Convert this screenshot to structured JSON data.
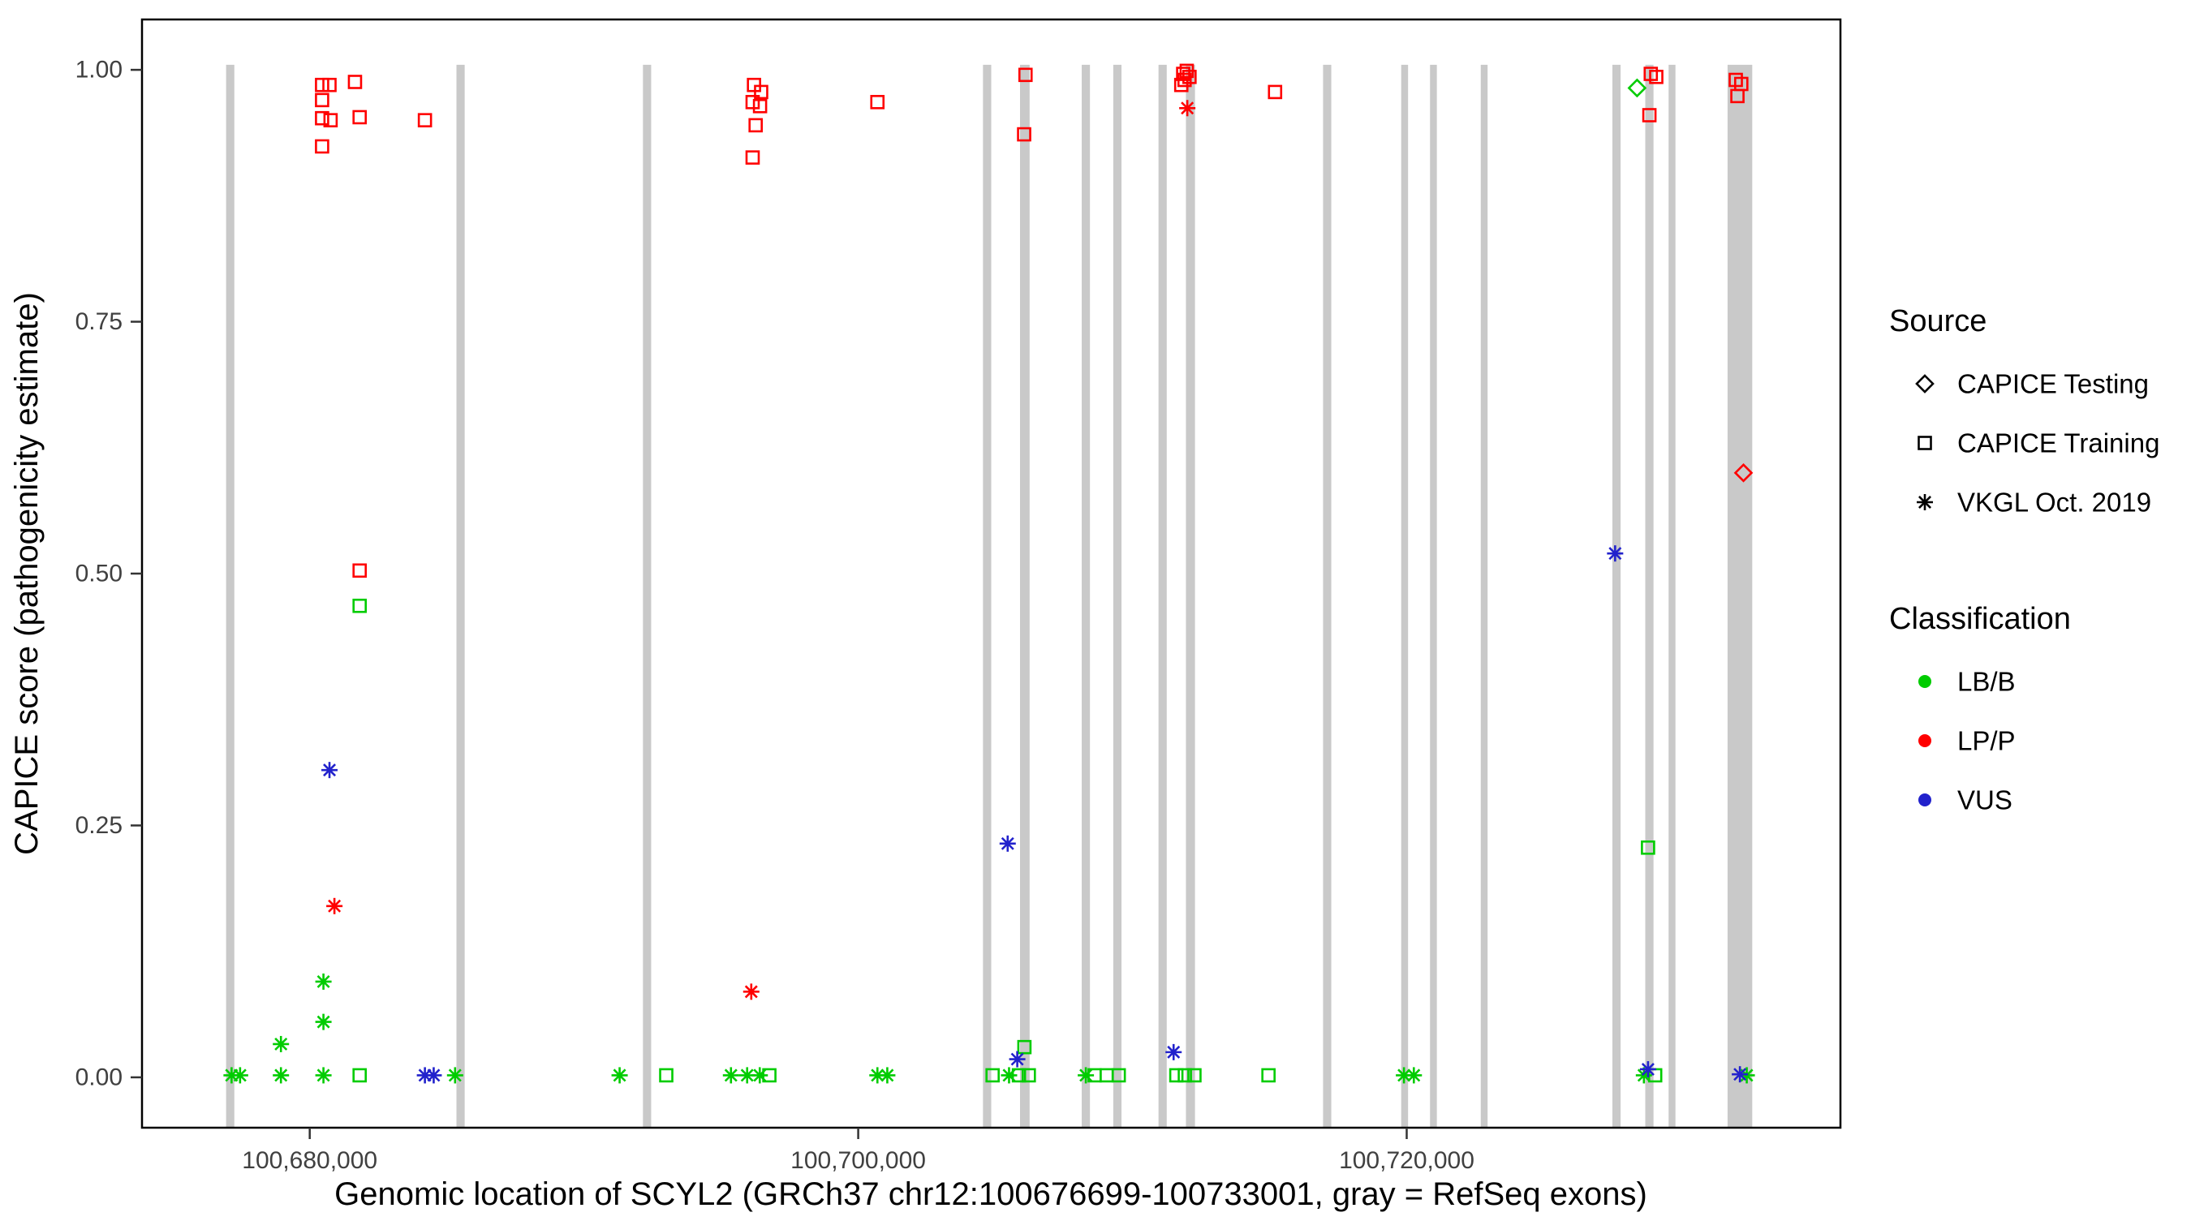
{
  "chart_data": {
    "type": "scatter",
    "title": "",
    "xlabel": "Genomic location of SCYL2 (GRCh37 chr12:100676699-100733001, gray = RefSeq exons)",
    "ylabel": "CAPICE score (pathogenicity estimate)",
    "x_domain": [
      100673884,
      100735816
    ],
    "y_domain": [
      -0.05,
      1.05
    ],
    "x_ticks": [
      {
        "value": 100680000,
        "label": "100,680,000"
      },
      {
        "value": 100700000,
        "label": "100,700,000"
      },
      {
        "value": 100720000,
        "label": "100,720,000"
      }
    ],
    "y_ticks": [
      {
        "value": 0.0,
        "label": "0.00"
      },
      {
        "value": 0.25,
        "label": "0.25"
      },
      {
        "value": 0.5,
        "label": "0.50"
      },
      {
        "value": 0.75,
        "label": "0.75"
      },
      {
        "value": 1.0,
        "label": "1.00"
      }
    ],
    "grid": false,
    "exon_color": "#C9C9C9",
    "exons": [
      [
        100676950,
        100677250
      ],
      [
        100685350,
        100685650
      ],
      [
        100692150,
        100692450
      ],
      [
        100704550,
        100704850
      ],
      [
        100705900,
        100706250
      ],
      [
        100708150,
        100708450
      ],
      [
        100709300,
        100709600
      ],
      [
        100710950,
        100711250
      ],
      [
        100711950,
        100712280
      ],
      [
        100716950,
        100717250
      ],
      [
        100719800,
        100720050
      ],
      [
        100720850,
        100721100
      ],
      [
        100722700,
        100722950
      ],
      [
        100727500,
        100727800
      ],
      [
        100728700,
        100729000
      ],
      [
        100729550,
        100729800
      ],
      [
        100731700,
        100732600
      ]
    ],
    "classification_colors": {
      "LB/B": "#00CC00",
      "LP/P": "#FF0000",
      "VUS": "#2222CC"
    },
    "shape_to_source": {
      "diamond": "CAPICE Testing",
      "square": "CAPICE Training",
      "asterisk": "VKGL Oct. 2019"
    },
    "points": [
      [
        100680450,
        0.985,
        "square",
        "LP/P"
      ],
      [
        100680720,
        0.985,
        "square",
        "LP/P"
      ],
      [
        100680450,
        0.97,
        "square",
        "LP/P"
      ],
      [
        100680450,
        0.952,
        "square",
        "LP/P"
      ],
      [
        100680760,
        0.95,
        "square",
        "LP/P"
      ],
      [
        100681650,
        0.988,
        "square",
        "LP/P"
      ],
      [
        100681820,
        0.953,
        "square",
        "LP/P"
      ],
      [
        100680450,
        0.924,
        "square",
        "LP/P"
      ],
      [
        100684200,
        0.95,
        "square",
        "LP/P"
      ],
      [
        100696200,
        0.985,
        "square",
        "LP/P"
      ],
      [
        100696460,
        0.978,
        "square",
        "LP/P"
      ],
      [
        100696150,
        0.968,
        "square",
        "LP/P"
      ],
      [
        100696420,
        0.964,
        "square",
        "LP/P"
      ],
      [
        100696260,
        0.945,
        "square",
        "LP/P"
      ],
      [
        100696150,
        0.913,
        "square",
        "LP/P"
      ],
      [
        100700700,
        0.968,
        "square",
        "LP/P"
      ],
      [
        100706100,
        0.995,
        "square",
        "LP/P"
      ],
      [
        100706050,
        0.936,
        "square",
        "LP/P"
      ],
      [
        100711850,
        0.996,
        "square",
        "LP/P"
      ],
      [
        100711980,
        0.999,
        "square",
        "LP/P"
      ],
      [
        100711900,
        0.99,
        "square",
        "LP/P"
      ],
      [
        100712080,
        0.993,
        "square",
        "LP/P"
      ],
      [
        100711780,
        0.985,
        "square",
        "LP/P"
      ],
      [
        100715200,
        0.978,
        "square",
        "LP/P"
      ],
      [
        100728900,
        0.996,
        "square",
        "LP/P"
      ],
      [
        100729100,
        0.993,
        "square",
        "LP/P"
      ],
      [
        100728850,
        0.955,
        "square",
        "LP/P"
      ],
      [
        100732000,
        0.99,
        "square",
        "LP/P"
      ],
      [
        100732200,
        0.986,
        "square",
        "LP/P"
      ],
      [
        100732060,
        0.974,
        "square",
        "LP/P"
      ],
      [
        100681820,
        0.503,
        "square",
        "LP/P"
      ],
      [
        100732280,
        0.6,
        "diamond",
        "LP/P"
      ],
      [
        100680900,
        0.17,
        "asterisk",
        "LP/P"
      ],
      [
        100696100,
        0.085,
        "asterisk",
        "LP/P"
      ],
      [
        100712000,
        0.962,
        "asterisk",
        "LP/P"
      ],
      [
        100681820,
        0.468,
        "square",
        "LB/B"
      ],
      [
        100681820,
        0.002,
        "square",
        "LB/B"
      ],
      [
        100693000,
        0.002,
        "square",
        "LB/B"
      ],
      [
        100696760,
        0.002,
        "square",
        "LB/B"
      ],
      [
        100704900,
        0.002,
        "square",
        "LB/B"
      ],
      [
        100705860,
        0.002,
        "square",
        "LB/B"
      ],
      [
        100706060,
        0.03,
        "square",
        "LB/B"
      ],
      [
        100706220,
        0.002,
        "square",
        "LB/B"
      ],
      [
        100708620,
        0.002,
        "square",
        "LB/B"
      ],
      [
        100709060,
        0.002,
        "square",
        "LB/B"
      ],
      [
        100709500,
        0.002,
        "square",
        "LB/B"
      ],
      [
        100711600,
        0.002,
        "square",
        "LB/B"
      ],
      [
        100711910,
        0.002,
        "square",
        "LB/B"
      ],
      [
        100712260,
        0.002,
        "square",
        "LB/B"
      ],
      [
        100714960,
        0.002,
        "square",
        "LB/B"
      ],
      [
        100729060,
        0.002,
        "square",
        "LB/B"
      ],
      [
        100728800,
        0.228,
        "square",
        "LB/B"
      ],
      [
        100728400,
        0.982,
        "diamond",
        "LB/B"
      ],
      [
        100677150,
        0.002,
        "asterisk",
        "LB/B"
      ],
      [
        100677460,
        0.002,
        "asterisk",
        "LB/B"
      ],
      [
        100678950,
        0.033,
        "asterisk",
        "LB/B"
      ],
      [
        100678950,
        0.002,
        "asterisk",
        "LB/B"
      ],
      [
        100680500,
        0.095,
        "asterisk",
        "LB/B"
      ],
      [
        100680500,
        0.055,
        "asterisk",
        "LB/B"
      ],
      [
        100680500,
        0.002,
        "asterisk",
        "LB/B"
      ],
      [
        100685300,
        0.002,
        "asterisk",
        "LB/B"
      ],
      [
        100691300,
        0.002,
        "asterisk",
        "LB/B"
      ],
      [
        100695360,
        0.002,
        "asterisk",
        "LB/B"
      ],
      [
        100695950,
        0.002,
        "asterisk",
        "LB/B"
      ],
      [
        100696410,
        0.002,
        "asterisk",
        "LB/B"
      ],
      [
        100700700,
        0.002,
        "asterisk",
        "LB/B"
      ],
      [
        100701060,
        0.002,
        "asterisk",
        "LB/B"
      ],
      [
        100705500,
        0.002,
        "asterisk",
        "LB/B"
      ],
      [
        100708300,
        0.002,
        "asterisk",
        "LB/B"
      ],
      [
        100719900,
        0.002,
        "asterisk",
        "LB/B"
      ],
      [
        100720260,
        0.002,
        "asterisk",
        "LB/B"
      ],
      [
        100728650,
        0.002,
        "asterisk",
        "LB/B"
      ],
      [
        100732400,
        0.002,
        "asterisk",
        "LB/B"
      ],
      [
        100680720,
        0.305,
        "asterisk",
        "VUS"
      ],
      [
        100684200,
        0.002,
        "asterisk",
        "VUS"
      ],
      [
        100684520,
        0.002,
        "asterisk",
        "VUS"
      ],
      [
        100705450,
        0.232,
        "asterisk",
        "VUS"
      ],
      [
        100705800,
        0.018,
        "asterisk",
        "VUS"
      ],
      [
        100711500,
        0.025,
        "asterisk",
        "VUS"
      ],
      [
        100727600,
        0.52,
        "asterisk",
        "VUS"
      ],
      [
        100728800,
        0.008,
        "asterisk",
        "VUS"
      ],
      [
        100732150,
        0.003,
        "asterisk",
        "VUS"
      ]
    ]
  },
  "legend": {
    "source": {
      "title": "Source",
      "items": [
        {
          "label": "CAPICE Testing",
          "shape": "diamond"
        },
        {
          "label": "CAPICE Training",
          "shape": "square"
        },
        {
          "label": "VKGL Oct. 2019",
          "shape": "asterisk"
        }
      ]
    },
    "classification": {
      "title": "Classification",
      "items": [
        {
          "label": "LB/B",
          "color": "#00CC00"
        },
        {
          "label": "LP/P",
          "color": "#FF0000"
        },
        {
          "label": "VUS",
          "color": "#2222CC"
        }
      ]
    }
  }
}
